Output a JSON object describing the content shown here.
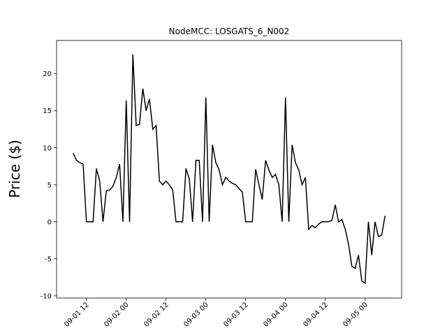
{
  "chart_data": {
    "type": "line",
    "title": "NodeMCC: LOSGATS_6_N002",
    "y_label": "Price ($)",
    "color": "#000000",
    "x": [
      "09-01 08",
      "09-01 09",
      "09-01 10",
      "09-01 11",
      "09-01 12",
      "09-01 13",
      "09-01 14",
      "09-01 15",
      "09-01 16",
      "09-01 17",
      "09-01 18",
      "09-01 19",
      "09-01 20",
      "09-01 21",
      "09-01 22",
      "09-01 23",
      "09-02 00",
      "09-02 01",
      "09-02 02",
      "09-02 03",
      "09-02 04",
      "09-02 05",
      "09-02 06",
      "09-02 07",
      "09-02 08",
      "09-02 09",
      "09-02 10",
      "09-02 11",
      "09-02 12",
      "09-02 13",
      "09-02 14",
      "09-02 15",
      "09-02 16",
      "09-02 17",
      "09-02 18",
      "09-02 19",
      "09-02 20",
      "09-02 21",
      "09-02 22",
      "09-02 23",
      "09-03 00",
      "09-03 01",
      "09-03 02",
      "09-03 03",
      "09-03 04",
      "09-03 05",
      "09-03 06",
      "09-03 07",
      "09-03 08",
      "09-03 09",
      "09-03 10",
      "09-03 11",
      "09-03 12",
      "09-03 13",
      "09-03 14",
      "09-03 15",
      "09-03 16",
      "09-03 17",
      "09-03 18",
      "09-03 19",
      "09-03 20",
      "09-03 21",
      "09-03 22",
      "09-03 23",
      "09-04 00",
      "09-04 01",
      "09-04 02",
      "09-04 03",
      "09-04 04",
      "09-04 05",
      "09-04 06",
      "09-04 07",
      "09-04 08",
      "09-04 09",
      "09-04 10",
      "09-04 11",
      "09-04 12",
      "09-04 13",
      "09-04 14",
      "09-04 15",
      "09-04 16",
      "09-04 17",
      "09-04 18",
      "09-04 19",
      "09-04 20",
      "09-04 21",
      "09-04 22",
      "09-04 23",
      "09-05 00",
      "09-05 01",
      "09-05 02",
      "09-05 03",
      "09-05 04",
      "09-05 05",
      "09-05 06"
    ],
    "values": [
      9.3,
      8.3,
      8.0,
      7.8,
      0,
      0,
      0,
      7.2,
      5.5,
      0,
      4.2,
      4.3,
      4.8,
      6,
      7.8,
      0,
      16.4,
      0,
      22.6,
      13,
      13.2,
      18,
      15,
      16.6,
      12.5,
      13,
      5.5,
      5,
      5.5,
      5,
      4.3,
      0,
      0,
      0,
      7.2,
      5.8,
      0,
      8.3,
      8.3,
      0,
      16.8,
      0,
      10.4,
      8,
      7,
      5,
      6,
      5.5,
      5.2,
      5,
      4.5,
      4,
      0,
      0,
      0,
      7.1,
      5,
      3,
      8.3,
      7,
      6,
      6.4,
      5,
      0,
      16.8,
      0,
      10.4,
      8,
      7,
      5,
      6,
      -1,
      -0.5,
      -0.8,
      -0.3,
      0,
      0,
      0,
      0.2,
      2.3,
      0,
      0.3,
      -1,
      -3,
      -6,
      -6.3,
      -4.5,
      -8,
      -8.3,
      0,
      -4.5,
      0,
      -2,
      -1.8,
      0.8
    ],
    "xlim": [
      "09-01 03",
      "09-05 11"
    ],
    "xticks": [
      "09-01 12",
      "09-02 00",
      "09-02 12",
      "09-03 00",
      "09-03 12",
      "09-04 00",
      "09-04 12",
      "09-05 00"
    ],
    "ylim": [
      -10.3,
      24.5
    ],
    "yticks": [
      -10,
      -5,
      0,
      5,
      10,
      15,
      20
    ]
  }
}
